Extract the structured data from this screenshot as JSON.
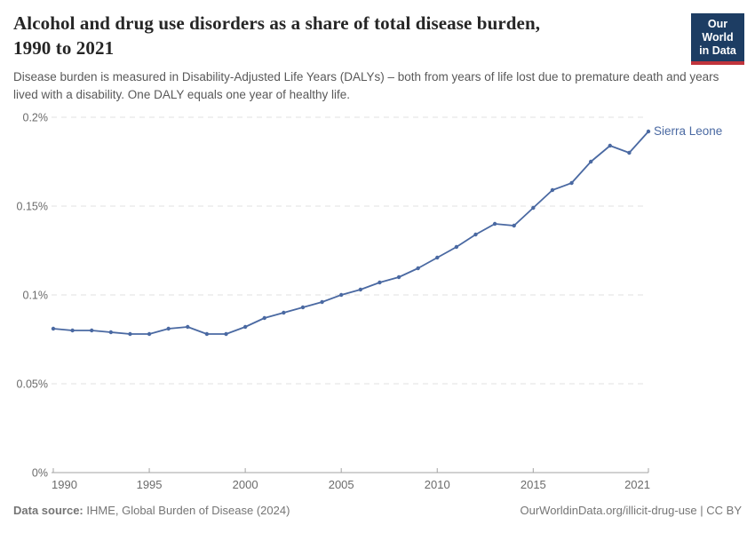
{
  "header": {
    "title_line1": "Alcohol and drug use disorders as a share of total disease burden,",
    "title_line2": "1990 to 2021",
    "subtitle": "Disease burden is measured in Disability-Adjusted Life Years (DALYs) – both from years of life lost due to premature death and years lived with a disability. One DALY equals one year of healthy life.",
    "logo_line1": "Our World",
    "logo_line2": "in Data"
  },
  "chart_data": {
    "type": "line",
    "title": "Alcohol and drug use disorders as a share of total disease burden, 1990 to 2021",
    "entity_label": "Sierra Leone",
    "unit": "%",
    "grid": true,
    "legend_position": "end-of-line",
    "xlim": [
      1990,
      2021
    ],
    "ylim": [
      0,
      0.2
    ],
    "x": [
      1990,
      1991,
      1992,
      1993,
      1994,
      1995,
      1996,
      1997,
      1998,
      1999,
      2000,
      2001,
      2002,
      2003,
      2004,
      2005,
      2006,
      2007,
      2008,
      2009,
      2010,
      2011,
      2012,
      2013,
      2014,
      2015,
      2016,
      2017,
      2018,
      2019,
      2020,
      2021
    ],
    "series": [
      {
        "name": "Sierra Leone",
        "values": [
          0.081,
          0.08,
          0.08,
          0.079,
          0.078,
          0.078,
          0.081,
          0.082,
          0.078,
          0.078,
          0.082,
          0.087,
          0.09,
          0.093,
          0.096,
          0.1,
          0.103,
          0.107,
          0.11,
          0.115,
          0.121,
          0.127,
          0.134,
          0.14,
          0.139,
          0.149,
          0.159,
          0.163,
          0.175,
          0.184,
          0.18,
          0.192
        ]
      }
    ],
    "x_ticks": [
      1990,
      1995,
      2000,
      2005,
      2010,
      2015,
      2021
    ],
    "y_ticks": [
      {
        "value": 0,
        "label": "0%"
      },
      {
        "value": 0.05,
        "label": "0.05%"
      },
      {
        "value": 0.1,
        "label": "0.1%"
      },
      {
        "value": 0.15,
        "label": "0.15%"
      },
      {
        "value": 0.2,
        "label": "0.2%"
      }
    ]
  },
  "colors": {
    "line": "#4a69a2",
    "grid": "#e2e2e2",
    "axis": "#a3a3a3",
    "tick_text": "#6b6b6b",
    "logo_bg": "#1d3d63",
    "logo_red": "#c0343c"
  },
  "footer": {
    "source_label": "Data source:",
    "source_text": " IHME, Global Burden of Disease (2024)",
    "credit": "OurWorldinData.org/illicit-drug-use | CC BY"
  }
}
